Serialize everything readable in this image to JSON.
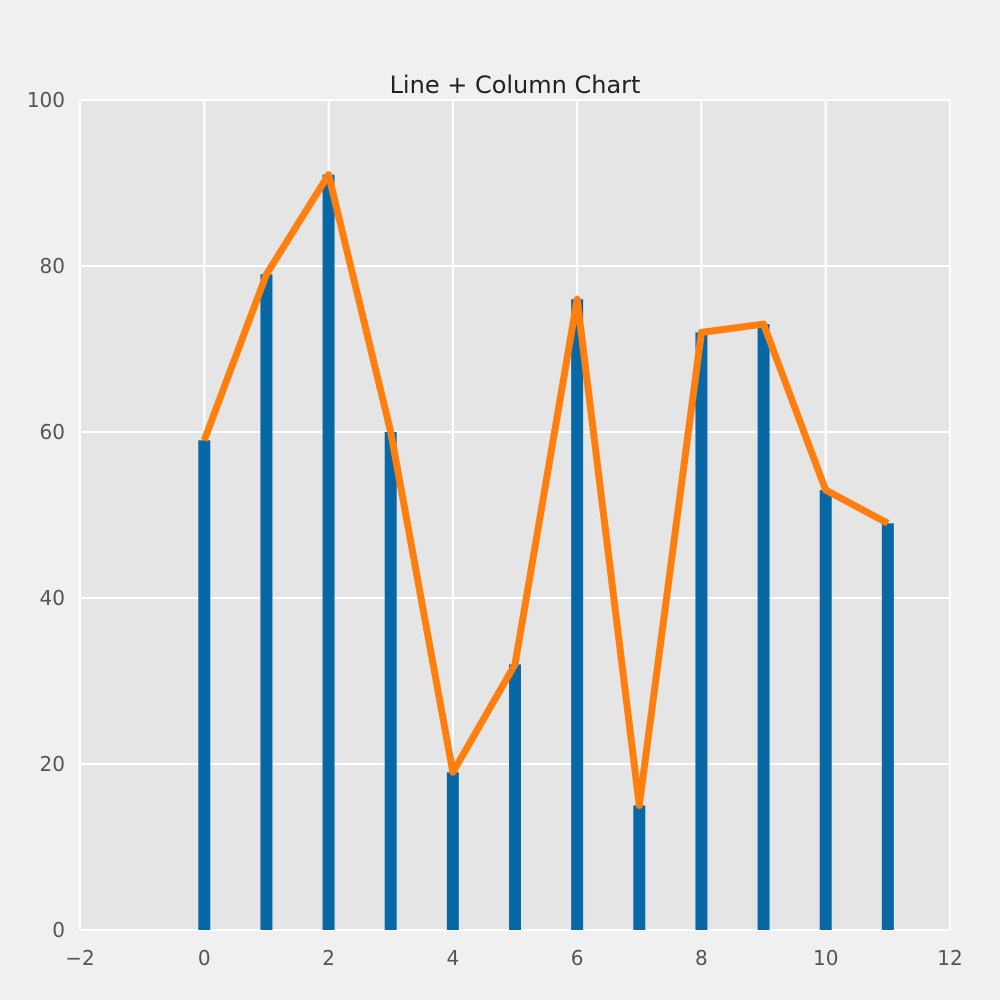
{
  "chart_data": {
    "type": "bar",
    "title": "Line + Column Chart",
    "xlabel": "",
    "ylabel": "",
    "xlim": [
      -2,
      12
    ],
    "ylim": [
      0,
      100
    ],
    "x_ticks": [
      -2,
      0,
      2,
      4,
      6,
      8,
      10,
      12
    ],
    "x_tick_labels": [
      "−2",
      "0",
      "2",
      "4",
      "6",
      "8",
      "10",
      "12"
    ],
    "y_ticks": [
      0,
      20,
      40,
      60,
      80,
      100
    ],
    "y_tick_labels": [
      "0",
      "20",
      "40",
      "60",
      "80",
      "100"
    ],
    "x": [
      0,
      1,
      2,
      3,
      4,
      5,
      6,
      7,
      8,
      9,
      10,
      11
    ],
    "series": [
      {
        "type": "bar",
        "color": "#0868a5",
        "values": [
          59,
          79,
          91,
          60,
          19,
          32,
          76,
          15,
          72,
          73,
          53,
          49
        ]
      },
      {
        "type": "line",
        "color": "#fe7f0e",
        "values": [
          59,
          79,
          91,
          60,
          19,
          32,
          76,
          15,
          72,
          73,
          53,
          49
        ]
      }
    ],
    "grid": true,
    "legend": "none",
    "colors": {
      "figure_background": "#f0f0f0",
      "plot_background": "#e5e5e5",
      "grid": "#ffffff"
    }
  }
}
